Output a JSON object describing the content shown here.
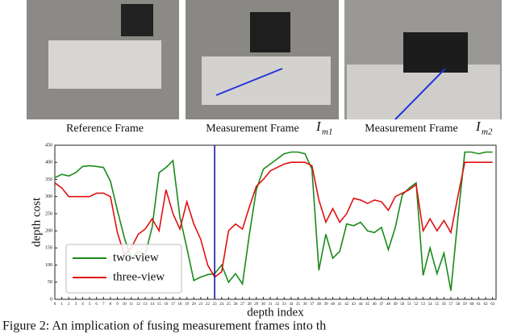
{
  "panels": [
    {
      "caption": "Reference Frame"
    },
    {
      "caption": "Measurement Frame",
      "symbol": "I",
      "subscript": "m1"
    },
    {
      "caption": "Measurement Frame",
      "symbol": "I",
      "subscript": "m2"
    }
  ],
  "figure_caption": "Figure 2: An implication of fusing measurement frames into th",
  "chart_data": {
    "type": "line",
    "x_label": "depth index",
    "y_label": "depth cost",
    "x": [
      0,
      1,
      2,
      3,
      4,
      5,
      6,
      7,
      8,
      9,
      10,
      11,
      12,
      13,
      14,
      15,
      16,
      17,
      18,
      19,
      20,
      21,
      22,
      23,
      24,
      25,
      26,
      27,
      28,
      29,
      30,
      31,
      32,
      33,
      34,
      35,
      36,
      37,
      38,
      39,
      40,
      41,
      42,
      43,
      44,
      45,
      46,
      47,
      48,
      49,
      50,
      51,
      52,
      53,
      54,
      55,
      56,
      57,
      58,
      59,
      60,
      61,
      62,
      63
    ],
    "series": [
      {
        "name": "two-view",
        "color": "#1a8a1a",
        "values": [
          355,
          365,
          360,
          370,
          388,
          390,
          388,
          385,
          345,
          260,
          180,
          120,
          140,
          130,
          210,
          370,
          385,
          405,
          240,
          150,
          55,
          65,
          72,
          75,
          100,
          50,
          75,
          45,
          190,
          320,
          380,
          395,
          410,
          425,
          430,
          430,
          425,
          380,
          85,
          190,
          120,
          140,
          220,
          215,
          225,
          200,
          195,
          210,
          145,
          210,
          305,
          325,
          340,
          70,
          150,
          75,
          135,
          25,
          235,
          430,
          430,
          425,
          430,
          430
        ]
      },
      {
        "name": "three-view",
        "color": "#e01010",
        "values": [
          340,
          325,
          300,
          300,
          300,
          300,
          310,
          310,
          300,
          195,
          130,
          150,
          190,
          205,
          235,
          200,
          320,
          250,
          205,
          285,
          220,
          175,
          100,
          65,
          80,
          200,
          220,
          205,
          270,
          330,
          350,
          375,
          385,
          395,
          400,
          400,
          400,
          390,
          290,
          225,
          265,
          225,
          250,
          295,
          290,
          280,
          290,
          285,
          260,
          300,
          310,
          320,
          335,
          200,
          235,
          200,
          230,
          195,
          300,
          400,
          400,
          400,
          400,
          400
        ]
      }
    ],
    "vline": {
      "x": 23,
      "color": "#1a1aa0"
    },
    "xlim": [
      0,
      63.5
    ],
    "ylim": [
      0,
      450
    ],
    "xticks": [
      0,
      1,
      2,
      3,
      4,
      5,
      6,
      7,
      8,
      9,
      10,
      11,
      12,
      13,
      14,
      15,
      16,
      17,
      18,
      19,
      20,
      21,
      22,
      23,
      24,
      25,
      26,
      27,
      28,
      29,
      30,
      31,
      32,
      33,
      34,
      35,
      36,
      37,
      38,
      39,
      40,
      41,
      42,
      43,
      44,
      45,
      46,
      47,
      48,
      49,
      50,
      51,
      52,
      53,
      54,
      55,
      56,
      57,
      58,
      59,
      60,
      61,
      62,
      63
    ],
    "yticks": [
      0,
      50,
      100,
      150,
      200,
      250,
      300,
      350,
      400,
      450
    ],
    "legend": "lower-left"
  }
}
